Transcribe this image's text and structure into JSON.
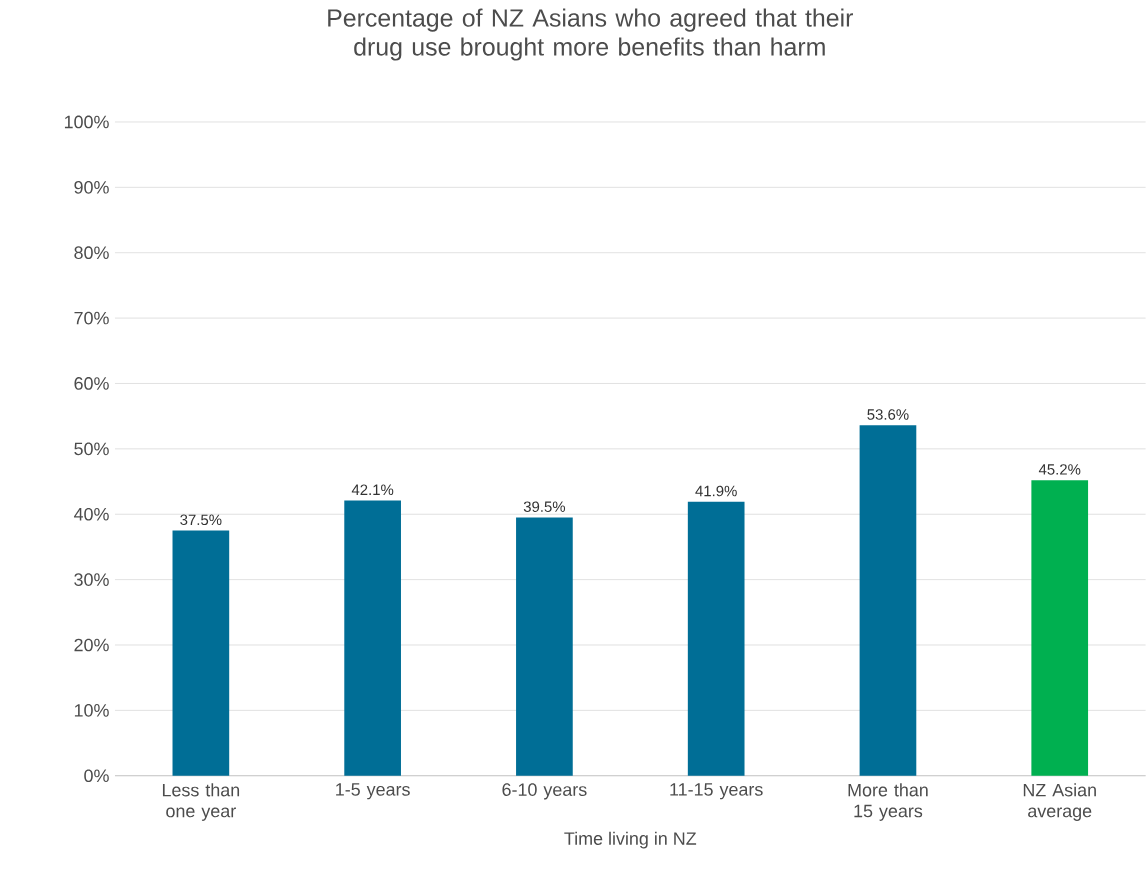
{
  "chart_data": {
    "type": "bar",
    "title": "Percentage of NZ Asians who agreed that their drug use brought more benefits than harm",
    "xlabel": "Time living in NZ",
    "categories": [
      "Less than one year",
      "1-5 years",
      "6-10 years",
      "11-15 years",
      "More than 15 years",
      "NZ Asian average"
    ],
    "values": [
      37.5,
      42.1,
      39.5,
      41.9,
      53.6,
      45.2
    ],
    "value_labels": [
      "37.5%",
      "42.1%",
      "39.5%",
      "41.9%",
      "53.6%",
      "45.2%"
    ],
    "colors": [
      "#006e96",
      "#006e96",
      "#006e96",
      "#006e96",
      "#006e96",
      "#00b050"
    ],
    "ylim": [
      0,
      100
    ],
    "yticks": [
      {
        "value": 0,
        "label": "0%"
      },
      {
        "value": 10,
        "label": "10%"
      },
      {
        "value": 20,
        "label": "20%"
      },
      {
        "value": 30,
        "label": "30%"
      },
      {
        "value": 40,
        "label": "40%"
      },
      {
        "value": 50,
        "label": "50%"
      },
      {
        "value": 60,
        "label": "60%"
      },
      {
        "value": 70,
        "label": "70%"
      },
      {
        "value": 80,
        "label": "80%"
      },
      {
        "value": 90,
        "label": "90%"
      },
      {
        "value": 100,
        "label": "100%"
      }
    ],
    "grid": "y"
  }
}
